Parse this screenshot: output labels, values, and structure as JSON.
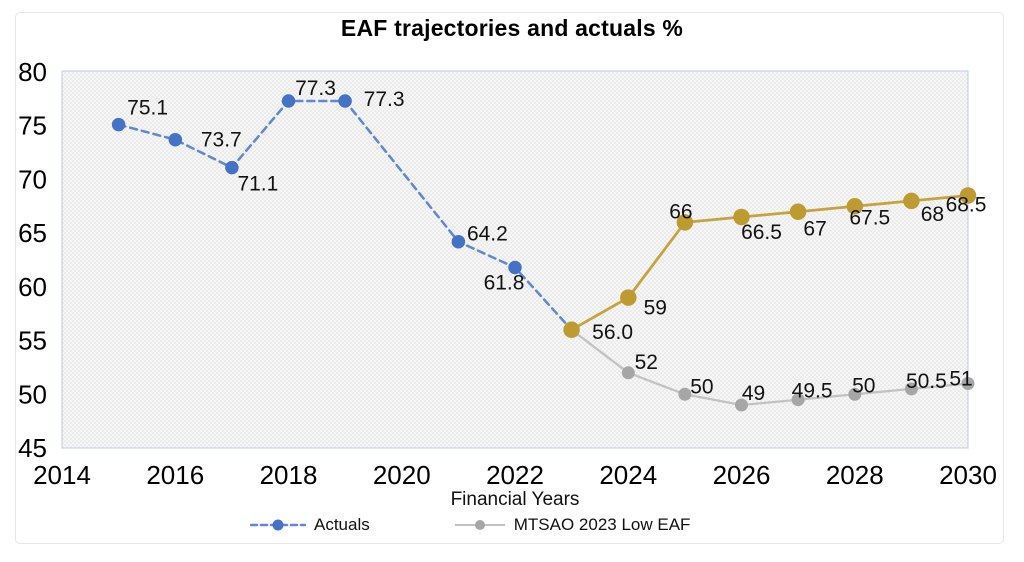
{
  "chart": {
    "title": "EAF trajectories and actuals %",
    "x_axis_title": "Financial Years",
    "legend": [
      {
        "label": "Actuals",
        "series": "actuals"
      },
      {
        "label": "MTSAO 2023 Low EAF",
        "series": "mtsao_low"
      }
    ]
  },
  "chart_data": {
    "type": "line",
    "title": "EAF trajectories and actuals %",
    "xlabel": "Financial Years",
    "ylabel": "",
    "xlim": [
      2014,
      2030
    ],
    "ylim": [
      45,
      80
    ],
    "x_ticks": [
      2014,
      2016,
      2018,
      2020,
      2022,
      2024,
      2026,
      2028,
      2030
    ],
    "y_ticks": [
      45,
      50,
      55,
      60,
      65,
      70,
      75,
      80
    ],
    "grid": false,
    "legend_position": "bottom",
    "plot_bg_color": "#ececec",
    "plot_border_color": "#c9d3e6",
    "series": [
      {
        "id": "mtsao_low",
        "name": "MTSAO 2023 Low EAF",
        "color": "#a6a6a6",
        "line_color": "#c2c2c2",
        "line_style": "solid",
        "stroke_width": 2.25,
        "marker": "circle",
        "marker_radius": 6.5,
        "in_legend": true,
        "points": [
          {
            "x": 2023,
            "y": 56.0,
            "label": "",
            "label_offset": [
              0,
              0
            ]
          },
          {
            "x": 2024,
            "y": 52,
            "label": "52",
            "label_offset": [
              18,
              -11
            ]
          },
          {
            "x": 2025,
            "y": 50,
            "label": "50",
            "label_offset": [
              17,
              -8
            ]
          },
          {
            "x": 2026,
            "y": 49,
            "label": "49",
            "label_offset": [
              12,
              -12
            ]
          },
          {
            "x": 2027,
            "y": 49.5,
            "label": "49.5",
            "label_offset": [
              14,
              -9
            ]
          },
          {
            "x": 2028,
            "y": 50,
            "label": "50",
            "label_offset": [
              9,
              -9
            ]
          },
          {
            "x": 2029,
            "y": 50.5,
            "label": "50.5",
            "label_offset": [
              15,
              -8
            ]
          },
          {
            "x": 2030,
            "y": 51,
            "label": "51",
            "label_offset": [
              -7,
              -5
            ]
          }
        ]
      },
      {
        "id": "actuals",
        "name": "Actuals",
        "color": "#4472c4",
        "line_color": "#5f87d5",
        "line_style": "dashed",
        "stroke_width": 2.5,
        "marker": "circle",
        "marker_radius": 6.75,
        "in_legend": true,
        "points": [
          {
            "x": 2015,
            "y": 75.1,
            "label": "75.1",
            "label_offset": [
              29,
              -17
            ]
          },
          {
            "x": 2016,
            "y": 73.7,
            "label": "73.7",
            "label_offset": [
              46,
              0
            ]
          },
          {
            "x": 2017,
            "y": 71.1,
            "label": "71.1",
            "label_offset": [
              26,
              16
            ]
          },
          {
            "x": 2018,
            "y": 77.3,
            "label": "77.3",
            "label_offset": [
              27,
              -13
            ]
          },
          {
            "x": 2019,
            "y": 77.3,
            "label": "77.3",
            "label_offset": [
              39,
              -2
            ]
          },
          {
            "x": 2021,
            "y": 64.2,
            "label": "64.2",
            "label_offset": [
              29,
              -8
            ]
          },
          {
            "x": 2022,
            "y": 61.8,
            "label": "61.8",
            "label_offset": [
              -11,
              15
            ]
          },
          {
            "x": 2023,
            "y": 56.0,
            "label": "56.0",
            "label_offset": [
              41,
              2
            ]
          }
        ]
      },
      {
        "id": "gold_trajectory",
        "name": "",
        "color": "#be9b30",
        "line_color": "#c6a33c",
        "line_style": "solid",
        "stroke_width": 2.75,
        "marker": "circle",
        "marker_radius": 8.25,
        "in_legend": false,
        "points": [
          {
            "x": 2023,
            "y": 56.0,
            "label": "",
            "label_offset": [
              0,
              0
            ]
          },
          {
            "x": 2024,
            "y": 59,
            "label": "59",
            "label_offset": [
              27,
              10
            ]
          },
          {
            "x": 2025,
            "y": 66,
            "label": "66",
            "label_offset": [
              -4,
              -11
            ]
          },
          {
            "x": 2026,
            "y": 66.5,
            "label": "66.5",
            "label_offset": [
              20,
              15
            ]
          },
          {
            "x": 2027,
            "y": 67,
            "label": "67",
            "label_offset": [
              17,
              17
            ]
          },
          {
            "x": 2028,
            "y": 67.5,
            "label": "67.5",
            "label_offset": [
              15,
              11
            ]
          },
          {
            "x": 2029,
            "y": 68,
            "label": "68",
            "label_offset": [
              21,
              13
            ]
          },
          {
            "x": 2030,
            "y": 68.5,
            "label": "68.5",
            "label_offset": [
              -2,
              9
            ]
          }
        ]
      }
    ]
  }
}
